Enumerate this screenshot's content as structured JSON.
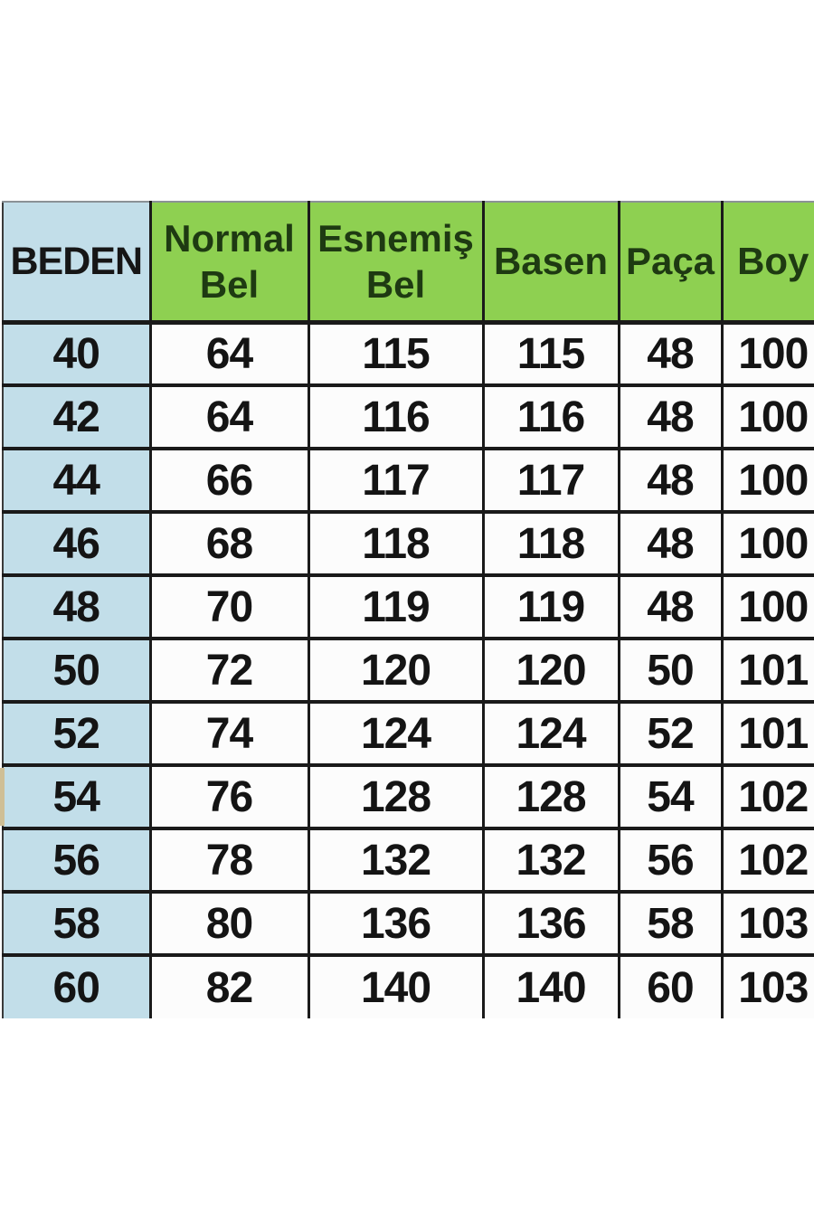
{
  "table": {
    "title": "size-chart",
    "columns": [
      {
        "key": "beden",
        "label": "BEDEN"
      },
      {
        "key": "normal_bel",
        "label": "Normal Bel"
      },
      {
        "key": "esnemis_bel",
        "label": "Esnemiş Bel"
      },
      {
        "key": "basen",
        "label": "Basen"
      },
      {
        "key": "paca",
        "label": "Paça"
      },
      {
        "key": "boy",
        "label": "Boy"
      }
    ],
    "rows": [
      [
        40,
        64,
        115,
        115,
        48,
        100
      ],
      [
        42,
        64,
        116,
        116,
        48,
        100
      ],
      [
        44,
        66,
        117,
        117,
        48,
        100
      ],
      [
        46,
        68,
        118,
        118,
        48,
        100
      ],
      [
        48,
        70,
        119,
        119,
        48,
        100
      ],
      [
        50,
        72,
        120,
        120,
        50,
        101
      ],
      [
        52,
        74,
        124,
        124,
        52,
        101
      ],
      [
        54,
        76,
        128,
        128,
        54,
        102
      ],
      [
        56,
        78,
        132,
        132,
        56,
        102
      ],
      [
        58,
        80,
        136,
        136,
        58,
        103
      ],
      [
        60,
        82,
        140,
        140,
        60,
        103
      ]
    ],
    "colors": {
      "header_green": "#8ed051",
      "beden_blue": "#c2dee9",
      "cell_white": "#fcfcfc",
      "border_black": "#1a1a1a",
      "header_text_green": "#1e3a12",
      "number_text": "#141414",
      "edge_artifact_tan": "#cfbf96"
    }
  }
}
